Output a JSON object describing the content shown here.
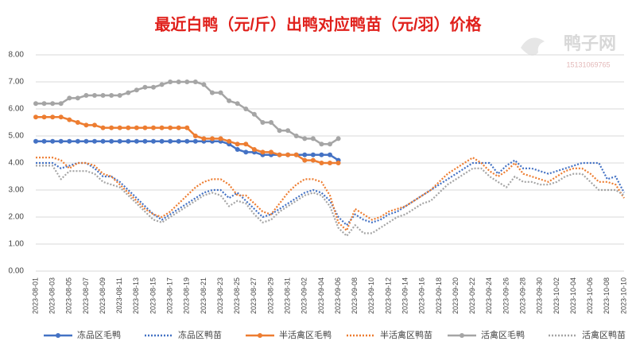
{
  "chart_data": {
    "type": "line",
    "title": "最近白鸭（元/斤）出鸭对应鸭苗（元/羽）价格",
    "watermark": "鸭子网",
    "watermark_phone": "15131069765",
    "categories": [
      "2023-08-01",
      null,
      "2023-08-03",
      null,
      "2023-08-05",
      null,
      "2023-08-07",
      null,
      "2023-08-09",
      null,
      "2023-08-11",
      null,
      "2023-08-13",
      null,
      "2023-08-15",
      null,
      "2023-08-17",
      null,
      "2023-08-19",
      null,
      "2023-08-21",
      null,
      "2023-08-23",
      null,
      "2023-08-25",
      null,
      "2023-08-27",
      null,
      "2023-08-29",
      null,
      "2023-08-31",
      null,
      "2023-09-02",
      null,
      "2023-09-04",
      null,
      "2023-09-06",
      null,
      "2023-09-08",
      null,
      "2023-09-10",
      null,
      "2023-09-12",
      null,
      "2023-09-14",
      null,
      "2023-09-16",
      null,
      "2023-09-18",
      null,
      "2023-09-20",
      null,
      "2023-09-22",
      null,
      "2023-09-24",
      null,
      "2023-09-26",
      null,
      "2023-09-28",
      null,
      "2023-09-30",
      null,
      "2023-10-02",
      null,
      "2023-10-04",
      null,
      "2023-10-06",
      null,
      "2023-10-08",
      null,
      "2023-10-10"
    ],
    "ylim": [
      0,
      8
    ],
    "yticks": [
      {
        "value": 0,
        "label": "0.00"
      },
      {
        "value": 1,
        "label": "1.00"
      },
      {
        "value": 2,
        "label": "2.00"
      },
      {
        "value": 3,
        "label": "3.00"
      },
      {
        "value": 4,
        "label": "4.00"
      },
      {
        "value": 5,
        "label": "5.00"
      },
      {
        "value": 6,
        "label": "6.00"
      },
      {
        "value": 7,
        "label": "7.00"
      },
      {
        "value": 8,
        "label": "8.00"
      }
    ],
    "grid": true,
    "legend": "bottom",
    "series": [
      {
        "name": "冻品区毛鸭",
        "color": "#4472c4",
        "dotted": false,
        "markers": true,
        "values": [
          4.8,
          4.8,
          4.8,
          4.8,
          4.8,
          4.8,
          4.8,
          4.8,
          4.8,
          4.8,
          4.8,
          4.8,
          4.8,
          4.8,
          4.8,
          4.8,
          4.8,
          4.8,
          4.8,
          4.8,
          4.8,
          4.8,
          4.8,
          4.7,
          4.5,
          4.4,
          4.4,
          4.3,
          4.3,
          4.3,
          4.3,
          4.3,
          4.3,
          4.3,
          4.3,
          4.3,
          4.1,
          null,
          null,
          null,
          null,
          null,
          null,
          null,
          null,
          null,
          null,
          null,
          null,
          null,
          null,
          null,
          null,
          null,
          null,
          null,
          null,
          null,
          null,
          null,
          null,
          null,
          null,
          null,
          null,
          null,
          null,
          null,
          null,
          null,
          null
        ]
      },
      {
        "name": "冻品区鸭苗",
        "color": "#4472c4",
        "dotted": true,
        "markers": false,
        "values": [
          4.0,
          4.0,
          4.0,
          3.8,
          3.9,
          4.0,
          4.0,
          3.8,
          3.5,
          3.5,
          3.3,
          3.0,
          2.7,
          2.4,
          2.1,
          1.9,
          2.1,
          2.3,
          2.5,
          2.7,
          2.9,
          3.0,
          3.0,
          2.7,
          2.9,
          2.6,
          2.3,
          2.0,
          2.1,
          2.3,
          2.5,
          2.7,
          2.9,
          3.0,
          2.9,
          2.6,
          2.0,
          1.7,
          2.1,
          1.9,
          1.8,
          1.9,
          2.1,
          2.2,
          2.4,
          2.6,
          2.8,
          3.0,
          3.2,
          3.4,
          3.6,
          3.8,
          4.0,
          4.0,
          4.0,
          3.6,
          3.9,
          4.1,
          3.8,
          3.8,
          3.7,
          3.6,
          3.7,
          3.8,
          3.9,
          4.0,
          4.0,
          4.0,
          3.4,
          3.5,
          2.9
        ]
      },
      {
        "name": "半活禽区毛鸭",
        "color": "#ed7d31",
        "dotted": false,
        "markers": true,
        "values": [
          5.7,
          5.7,
          5.7,
          5.7,
          5.6,
          5.5,
          5.4,
          5.4,
          5.3,
          5.3,
          5.3,
          5.3,
          5.3,
          5.3,
          5.3,
          5.3,
          5.3,
          5.3,
          5.3,
          5.0,
          4.9,
          4.9,
          4.9,
          4.8,
          4.7,
          4.7,
          4.5,
          4.4,
          4.4,
          4.3,
          4.3,
          4.3,
          4.1,
          4.1,
          4.0,
          4.0,
          4.0,
          null,
          null,
          null,
          null,
          null,
          null,
          null,
          null,
          null,
          null,
          null,
          null,
          null,
          null,
          null,
          null,
          null,
          null,
          null,
          null,
          null,
          null,
          null,
          null,
          null,
          null,
          null,
          null,
          null,
          null,
          null,
          null,
          null,
          null
        ]
      },
      {
        "name": "半活禽区鸭苗",
        "color": "#ed7d31",
        "dotted": true,
        "markers": false,
        "values": [
          4.2,
          4.2,
          4.2,
          4.1,
          3.8,
          4.0,
          4.0,
          3.9,
          3.6,
          3.5,
          3.2,
          2.9,
          2.6,
          2.3,
          2.1,
          2.0,
          2.2,
          2.5,
          2.8,
          3.1,
          3.3,
          3.4,
          3.4,
          3.2,
          2.8,
          2.8,
          2.5,
          2.2,
          2.1,
          2.5,
          2.9,
          3.2,
          3.4,
          3.4,
          3.3,
          2.8,
          1.8,
          1.5,
          2.3,
          2.1,
          1.9,
          2.0,
          2.2,
          2.3,
          2.4,
          2.6,
          2.8,
          3.0,
          3.3,
          3.6,
          3.8,
          4.0,
          4.2,
          4.0,
          3.7,
          3.5,
          3.7,
          4.0,
          3.6,
          3.5,
          3.4,
          3.3,
          3.5,
          3.7,
          3.8,
          3.8,
          3.6,
          3.3,
          3.3,
          3.2,
          2.7
        ]
      },
      {
        "name": "活禽区毛鸭",
        "color": "#a5a5a5",
        "dotted": false,
        "markers": true,
        "values": [
          6.2,
          6.2,
          6.2,
          6.2,
          6.4,
          6.4,
          6.5,
          6.5,
          6.5,
          6.5,
          6.5,
          6.6,
          6.7,
          6.8,
          6.8,
          6.9,
          7.0,
          7.0,
          7.0,
          7.0,
          6.9,
          6.6,
          6.6,
          6.3,
          6.2,
          6.0,
          5.8,
          5.5,
          5.5,
          5.2,
          5.2,
          5.0,
          4.9,
          4.9,
          4.7,
          4.7,
          4.9,
          null,
          null,
          null,
          null,
          null,
          null,
          null,
          null,
          null,
          null,
          null,
          null,
          null,
          null,
          null,
          null,
          null,
          null,
          null,
          null,
          null,
          null,
          null,
          null,
          null,
          null,
          null,
          null,
          null,
          null,
          null,
          null,
          null,
          null
        ]
      },
      {
        "name": "活禽区鸭苗",
        "color": "#a5a5a5",
        "dotted": true,
        "markers": false,
        "values": [
          3.9,
          3.9,
          3.9,
          3.4,
          3.7,
          3.7,
          3.7,
          3.6,
          3.3,
          3.2,
          3.1,
          2.8,
          2.5,
          2.2,
          1.9,
          1.8,
          2.0,
          2.2,
          2.4,
          2.6,
          2.8,
          2.9,
          2.8,
          2.4,
          2.6,
          2.5,
          2.1,
          1.8,
          1.9,
          2.2,
          2.4,
          2.6,
          2.8,
          2.9,
          2.8,
          2.4,
          1.6,
          1.3,
          1.7,
          1.4,
          1.4,
          1.6,
          1.8,
          2.0,
          2.1,
          2.3,
          2.5,
          2.6,
          2.9,
          3.2,
          3.4,
          3.6,
          3.8,
          3.8,
          3.5,
          3.3,
          3.1,
          3.5,
          3.3,
          3.3,
          3.2,
          3.2,
          3.3,
          3.5,
          3.6,
          3.6,
          3.3,
          3.0,
          3.0,
          3.0,
          2.8
        ]
      }
    ]
  }
}
